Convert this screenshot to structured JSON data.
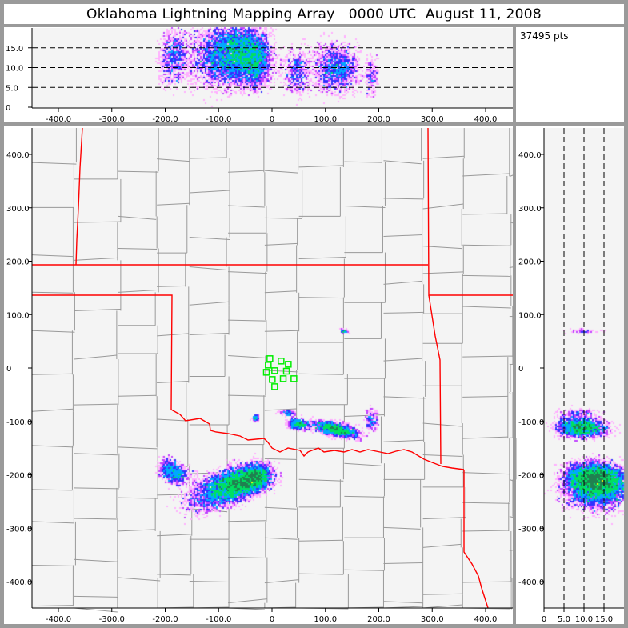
{
  "title": "Oklahoma Lightning Mapping Array   0000 UTC  August 11, 2008",
  "info": {
    "point_count": "37495 pts"
  },
  "colors": {
    "background": "#9a9a9a",
    "plot_bg": "#f4f4f4",
    "state_border": "#ff0000",
    "county_border": "#999999",
    "station": "#00ee00",
    "density_scale": [
      "#ffb0ff",
      "#c040ff",
      "#3030ff",
      "#00a8ff",
      "#00e060",
      "#208050",
      "#ffff00",
      "#ff8000"
    ]
  },
  "chart_data": [
    {
      "panel": "altitude-vs-east-west",
      "type": "heatmap",
      "x_ticks": [
        "-400.0",
        "-300.0",
        "-200.0",
        "-100.0",
        "0",
        "100.0",
        "200.0",
        "300.0",
        "400.0"
      ],
      "y_ticks": [
        "0",
        "5.0",
        "10.0",
        "15.0"
      ],
      "xlim": [
        -450,
        450
      ],
      "ylim": [
        0,
        20
      ],
      "dashed_lines": [
        5,
        10,
        15
      ]
    },
    {
      "panel": "plan-view",
      "type": "scatter",
      "x_ticks": [
        "-400.0",
        "-300.0",
        "-200.0",
        "-100.0",
        "0",
        "100.0",
        "200.0",
        "300.0",
        "400.0"
      ],
      "y_ticks": [
        "400.0",
        "300.0",
        "200.0",
        "100.0",
        "0",
        "-100.0",
        "-200.0",
        "-300.0",
        "-400.0"
      ],
      "xlim": [
        -450,
        450
      ],
      "ylim": [
        -450,
        450
      ],
      "stations": [
        [
          -4,
          17.5
        ],
        [
          17,
          13
        ],
        [
          30.5,
          7
        ],
        [
          -7,
          5.5
        ],
        [
          5,
          -5
        ],
        [
          27,
          -6
        ],
        [
          -10.5,
          -8
        ],
        [
          0.5,
          -21.5
        ],
        [
          21,
          -20
        ],
        [
          41,
          -20
        ],
        [
          5,
          -35
        ]
      ],
      "source_clusters": [
        {
          "x": -183,
          "y": -195,
          "z": 13
        },
        {
          "x": -90,
          "y": -225,
          "z": 13
        },
        {
          "x": -60,
          "y": -215,
          "z": 14
        },
        {
          "x": -30,
          "y": -205,
          "z": 12
        },
        {
          "x": 50,
          "y": -105,
          "z": 9
        },
        {
          "x": 120,
          "y": -115,
          "z": 10
        },
        {
          "x": 187,
          "y": -97,
          "z": 8
        },
        {
          "x": 135,
          "y": 69,
          "z": 10
        },
        {
          "x": -30,
          "y": -94,
          "z": 9
        },
        {
          "x": 30,
          "y": -85,
          "z": 9
        }
      ]
    },
    {
      "panel": "north-south-vs-altitude",
      "type": "heatmap",
      "x_ticks": [
        "0",
        "5.0",
        "10.0",
        "15.0"
      ],
      "y_ticks": [
        "400.0",
        "300.0",
        "200.0",
        "100.0",
        "0",
        "-100.0",
        "-200.0",
        "-300.0",
        "-400.0"
      ],
      "xlim": [
        0,
        20
      ],
      "ylim": [
        -450,
        450
      ],
      "dashed_lines": [
        5,
        10,
        15
      ]
    }
  ]
}
